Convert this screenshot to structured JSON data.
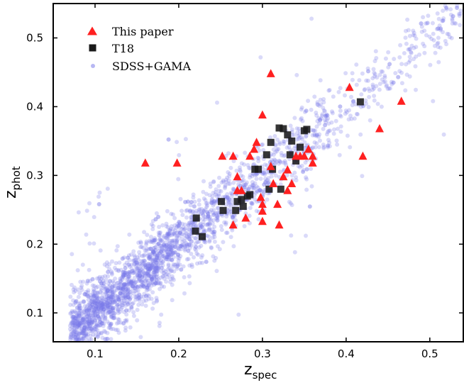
{
  "chart_data": {
    "type": "scatter",
    "xlabel": "z",
    "xlabel_sub": "spec",
    "ylabel": "z",
    "ylabel_sub": "phot",
    "xlim": [
      0.05,
      0.54
    ],
    "ylim": [
      0.058,
      0.55
    ],
    "x_ticks": [
      0.1,
      0.2,
      0.3,
      0.4,
      0.5
    ],
    "x_tick_labels": [
      "0.1",
      "0.2",
      "0.3",
      "0.4",
      "0.5"
    ],
    "y_ticks": [
      0.1,
      0.2,
      0.3,
      0.4,
      0.5
    ],
    "y_tick_labels": [
      "0.1",
      "0.2",
      "0.3",
      "0.4",
      "0.5"
    ],
    "grid": false,
    "legend_placement": "top-left",
    "series": [
      {
        "name": "SDSS+GAMA",
        "marker": "circle",
        "color": "#8080ee",
        "distribution": {
          "description_count": 2600,
          "relation": "zphot ~ zspec",
          "x_range": [
            0.065,
            0.54
          ],
          "scatter": 0.025
        },
        "x": [
          0.08,
          0.1,
          0.13,
          0.17,
          0.2,
          0.25,
          0.3,
          0.35,
          0.4,
          0.45,
          0.5,
          0.53
        ],
        "y": [
          0.09,
          0.11,
          0.14,
          0.17,
          0.2,
          0.25,
          0.3,
          0.35,
          0.4,
          0.45,
          0.5,
          0.52
        ]
      },
      {
        "name": "T18",
        "marker": "square",
        "color": "#1a1a1a",
        "x": [
          0.221,
          0.22,
          0.228,
          0.251,
          0.253,
          0.27,
          0.268,
          0.277,
          0.275,
          0.282,
          0.285,
          0.291,
          0.295,
          0.305,
          0.308,
          0.31,
          0.312,
          0.32,
          0.322,
          0.325,
          0.33,
          0.333,
          0.335,
          0.34,
          0.345,
          0.35,
          0.353,
          0.417
        ],
        "y": [
          0.238,
          0.219,
          0.211,
          0.262,
          0.249,
          0.262,
          0.249,
          0.255,
          0.265,
          0.27,
          0.272,
          0.309,
          0.309,
          0.33,
          0.28,
          0.348,
          0.309,
          0.369,
          0.28,
          0.368,
          0.359,
          0.33,
          0.35,
          0.321,
          0.341,
          0.365,
          0.367,
          0.407
        ]
      },
      {
        "name": "This paper",
        "marker": "triangle",
        "color": "#ff2020",
        "x": [
          0.16,
          0.198,
          0.252,
          0.265,
          0.265,
          0.27,
          0.27,
          0.275,
          0.28,
          0.285,
          0.29,
          0.293,
          0.298,
          0.3,
          0.3,
          0.3,
          0.3,
          0.31,
          0.31,
          0.313,
          0.318,
          0.32,
          0.325,
          0.33,
          0.33,
          0.335,
          0.34,
          0.345,
          0.35,
          0.355,
          0.36,
          0.36,
          0.404,
          0.42,
          0.44,
          0.466
        ],
        "y": [
          0.318,
          0.318,
          0.328,
          0.328,
          0.228,
          0.298,
          0.278,
          0.278,
          0.238,
          0.328,
          0.338,
          0.348,
          0.268,
          0.388,
          0.258,
          0.248,
          0.233,
          0.448,
          0.313,
          0.288,
          0.258,
          0.228,
          0.298,
          0.278,
          0.308,
          0.288,
          0.328,
          0.328,
          0.328,
          0.338,
          0.318,
          0.328,
          0.428,
          0.328,
          0.368,
          0.408
        ]
      }
    ]
  }
}
